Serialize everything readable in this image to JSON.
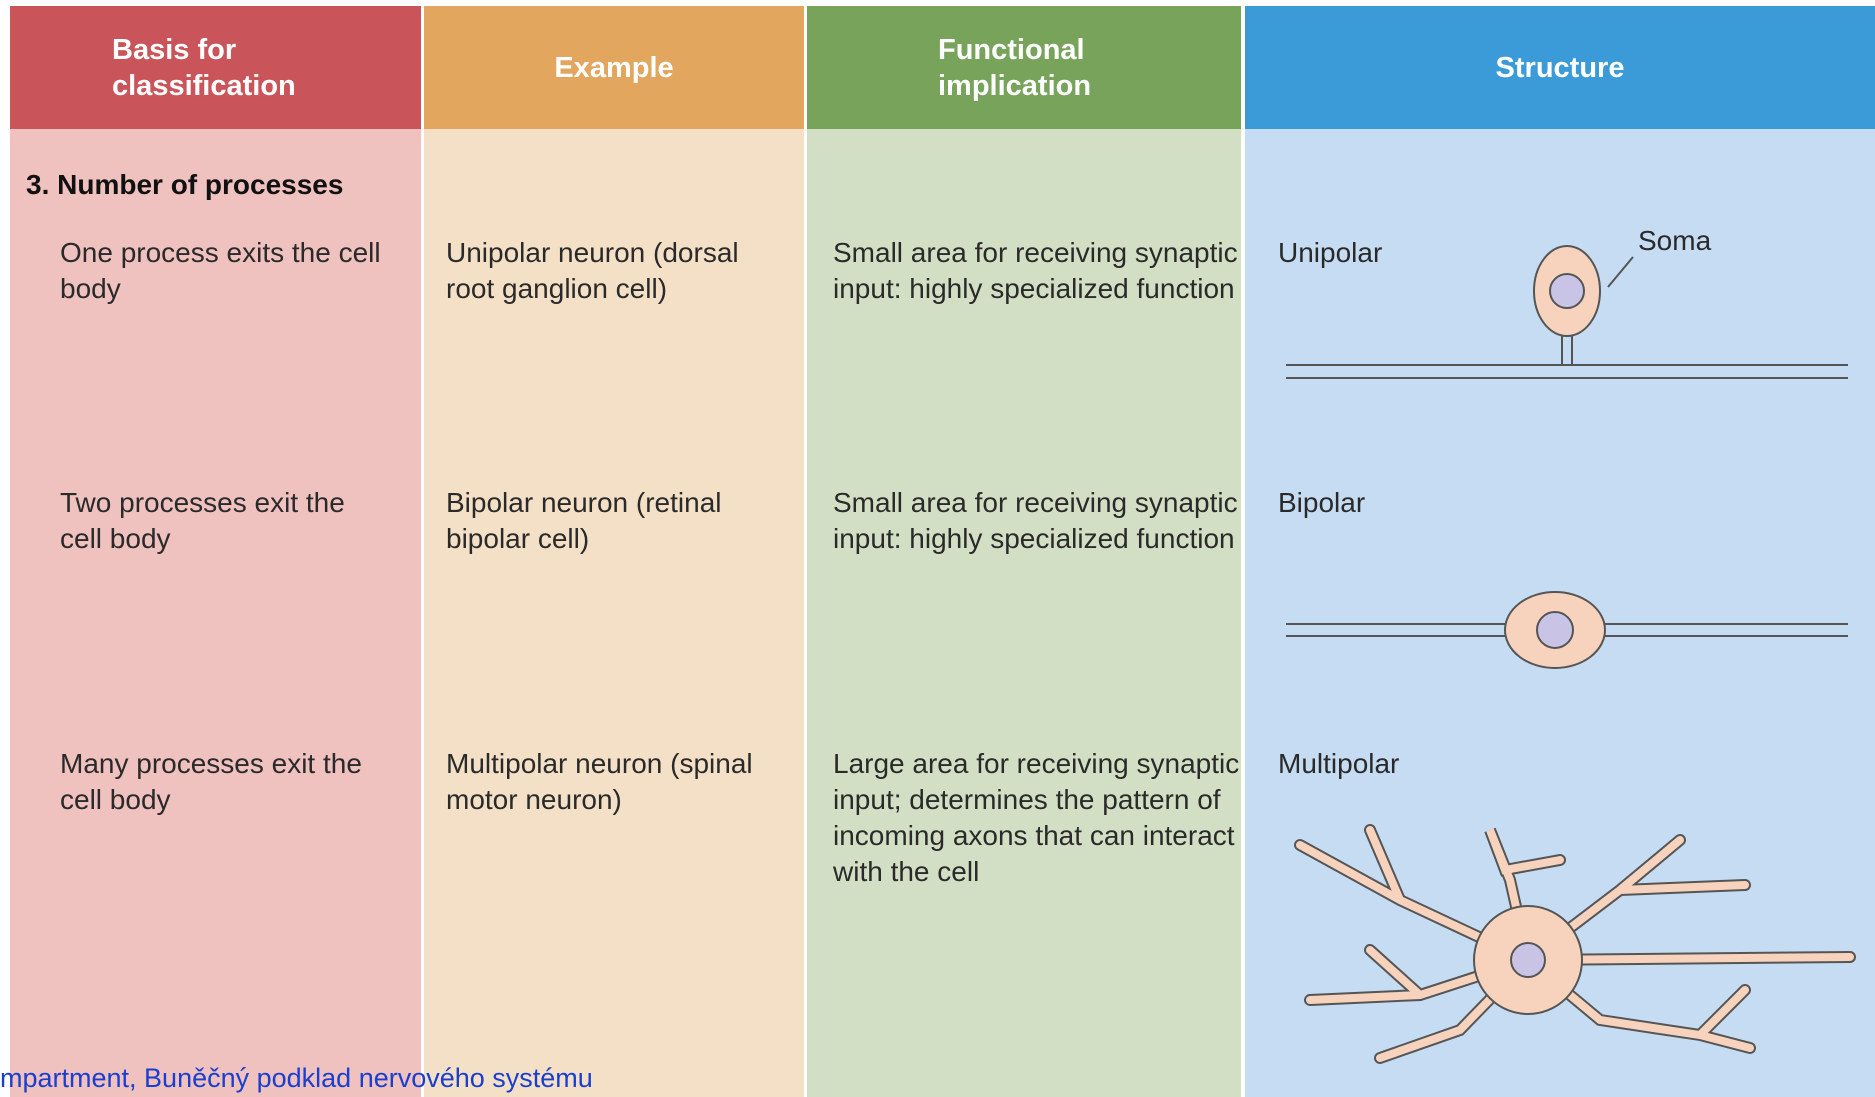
{
  "header": {
    "columns": [
      "Basis for classification",
      "Example",
      "Functional implication",
      "Structure"
    ]
  },
  "section_title": "3. Number of processes",
  "rows": [
    {
      "basis": "One process exits the cell body",
      "example": "Unipolar neuron (dorsal root ganglion cell)",
      "implication": "Small area for receiving synaptic input: highly specialized function",
      "structure": "Unipolar"
    },
    {
      "basis": "Two processes exit the cell body",
      "example": "Bipolar neuron (retinal bipolar cell)",
      "implication": "Small area for receiving synaptic input: highly specialized function",
      "structure": "Bipolar"
    },
    {
      "basis": "Many processes exit the cell body",
      "example": "Multipolar neuron (spinal motor neuron)",
      "implication": "Large area for receiving synaptic input; determines the pattern of incoming axons that can interact with the cell",
      "structure": "Multipolar"
    }
  ],
  "soma_label": "Soma",
  "caption": "mpartment, Buněčný podklad nervového systému"
}
